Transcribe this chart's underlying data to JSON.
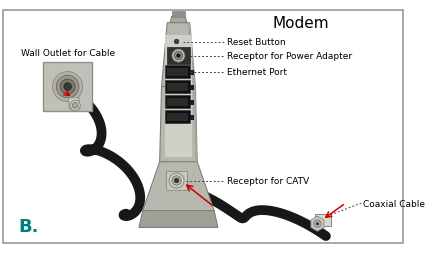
{
  "title": "Modem",
  "bg_color": "#ffffff",
  "border_color": "#aaaaaa",
  "label_B": "B.",
  "label_B_color": "#008080",
  "labels": {
    "wall_outlet": "Wall Outlet for Cable",
    "reset_button": "Reset Button",
    "power_adapter": "Receptor for Power Adapter",
    "ethernet_port": "Ethernet Port",
    "catv": "Receptor for CATV",
    "coaxial": "Coaxial Cable"
  },
  "modem_color": "#b8b8b0",
  "modem_dark": "#808078",
  "modem_light": "#d0d0c8",
  "outlet_color": "#c8c8c0",
  "cable_color": "#181818",
  "connector_color": "#d0d0d0",
  "arrow_color": "#cc0000",
  "dot_line_color": "#333333",
  "text_color": "#000000",
  "font_size": 6.5,
  "title_font_size": 11
}
